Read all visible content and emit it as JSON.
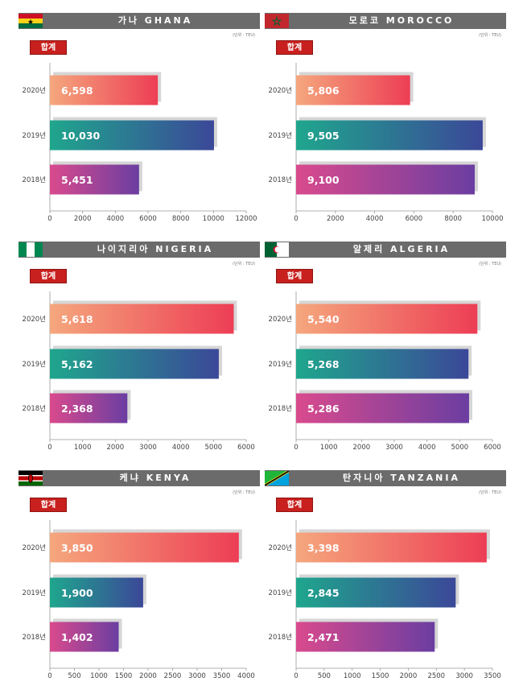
{
  "unit_label": "(단위 : TEU)",
  "total_label": "합계",
  "colors": {
    "bar_2020": [
      "#f5a77d",
      "#ed3e55"
    ],
    "bar_2019": [
      "#1fa68d",
      "#3b4898"
    ],
    "bar_2018": [
      "#d94a8d",
      "#6b3ea1"
    ]
  },
  "chart_data": [
    {
      "type": "bar",
      "title": "가나 GHANA",
      "flag": "ghana",
      "categories": [
        "2020년",
        "2019년",
        "2018년"
      ],
      "values": [
        6598,
        10030,
        5451
      ],
      "labels": [
        "6,598",
        "10,030",
        "5,451"
      ],
      "xlim": [
        0,
        12000
      ],
      "xticks": [
        "0",
        "2000",
        "4000",
        "6000",
        "8000",
        "10000",
        "12000"
      ]
    },
    {
      "type": "bar",
      "title": "모로코 MOROCCO",
      "flag": "morocco",
      "categories": [
        "2020년",
        "2019년",
        "2018년"
      ],
      "values": [
        5806,
        9505,
        9100
      ],
      "labels": [
        "5,806",
        "9,505",
        "9,100"
      ],
      "xlim": [
        0,
        10000
      ],
      "xticks": [
        "0",
        "2000",
        "4000",
        "6000",
        "8000",
        "10000"
      ]
    },
    {
      "type": "bar",
      "title": "나이지리아 NIGERIA",
      "flag": "nigeria",
      "categories": [
        "2020년",
        "2019년",
        "2018년"
      ],
      "values": [
        5618,
        5162,
        2368
      ],
      "labels": [
        "5,618",
        "5,162",
        "2,368"
      ],
      "xlim": [
        0,
        6000
      ],
      "xticks": [
        "0",
        "1000",
        "2000",
        "3000",
        "4000",
        "5000",
        "6000"
      ]
    },
    {
      "type": "bar",
      "title": "알제리 ALGERIA",
      "flag": "algeria",
      "categories": [
        "2020년",
        "2019년",
        "2018년"
      ],
      "values": [
        5540,
        5268,
        5286
      ],
      "labels": [
        "5,540",
        "5,268",
        "5,286"
      ],
      "xlim": [
        0,
        6000
      ],
      "xticks": [
        "0",
        "1000",
        "2000",
        "3000",
        "4000",
        "5000",
        "6000"
      ]
    },
    {
      "type": "bar",
      "title": "케냐 KENYA",
      "flag": "kenya",
      "categories": [
        "2020년",
        "2019년",
        "2018년"
      ],
      "values": [
        3850,
        1900,
        1402
      ],
      "labels": [
        "3,850",
        "1,900",
        "1,402"
      ],
      "xlim": [
        0,
        4000
      ],
      "xticks": [
        "0",
        "500",
        "1000",
        "1500",
        "2000",
        "2500",
        "3000",
        "3500",
        "4000"
      ]
    },
    {
      "type": "bar",
      "title": "탄자니아 TANZANIA",
      "flag": "tanzania",
      "categories": [
        "2020년",
        "2019년",
        "2018년"
      ],
      "values": [
        3398,
        2845,
        2471
      ],
      "labels": [
        "3,398",
        "2,845",
        "2,471"
      ],
      "xlim": [
        0,
        3500
      ],
      "xticks": [
        "0",
        "500",
        "1000",
        "1500",
        "2000",
        "2500",
        "3000",
        "3500"
      ]
    }
  ]
}
